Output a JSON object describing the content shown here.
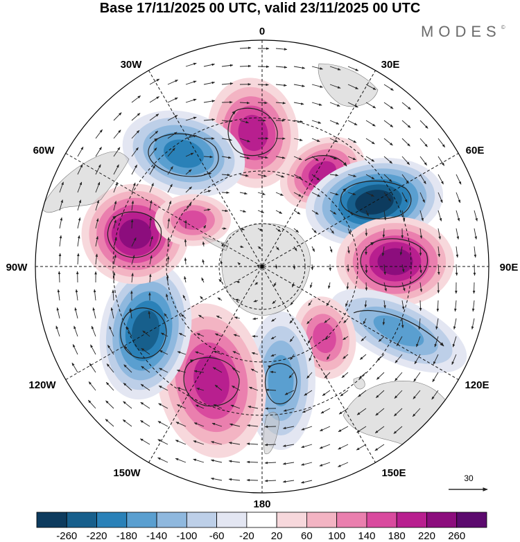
{
  "header": {
    "title": "Base 17/11/2025 00 UTC, valid 23/11/2025 00 UTC",
    "brand": "MODES",
    "brand_mark": "©"
  },
  "map": {
    "projection": "south-polar-stereographic",
    "longitude_labels": {
      "top": "0",
      "top_right": "30E",
      "right_upper": "60E",
      "right": "90E",
      "right_lower": "120E",
      "bottom_right": "150E",
      "bottom": "180",
      "bottom_left": "150W",
      "left_lower": "120W",
      "left": "90W",
      "left_upper": "60W",
      "top_left": "30W"
    },
    "anomaly_centers": [
      {
        "id": "a1",
        "value": 200,
        "lon_label": "0"
      },
      {
        "id": "a2",
        "value": -200,
        "lon_label": "30W"
      },
      {
        "id": "a3",
        "value": 180,
        "lon_label": "45E"
      },
      {
        "id": "a4",
        "value": -260,
        "lon_label": "60E"
      },
      {
        "id": "a5",
        "value": 240,
        "lon_label": "90E"
      },
      {
        "id": "a6",
        "value": -160,
        "lon_label": "120E"
      },
      {
        "id": "a7",
        "value": 140,
        "lon_label": "140E"
      },
      {
        "id": "a8",
        "value": -160,
        "lon_label": "180"
      },
      {
        "id": "a9",
        "value": 200,
        "lon_label": "150W"
      },
      {
        "id": "a10",
        "value": -220,
        "lon_label": "120W"
      },
      {
        "id": "a11",
        "value": 220,
        "lon_label": "70W"
      },
      {
        "id": "a12",
        "value": 160,
        "lon_label": "60W"
      }
    ]
  },
  "wind_reference": {
    "value": "30"
  },
  "colorbar": {
    "labels": [
      "-260",
      "-220",
      "-180",
      "-140",
      "-100",
      "-60",
      "-20",
      "20",
      "60",
      "100",
      "140",
      "180",
      "220",
      "260"
    ],
    "colors": [
      "#0d3b5e",
      "#175f8c",
      "#2a81b8",
      "#5a9fd0",
      "#8fb8de",
      "#bdcfe8",
      "#e3e6f2",
      "#ffffff",
      "#f7d8dc",
      "#f3b4c3",
      "#ea7fae",
      "#d94a9e",
      "#b81f8f",
      "#8c0d7d",
      "#5c0a6e"
    ]
  }
}
